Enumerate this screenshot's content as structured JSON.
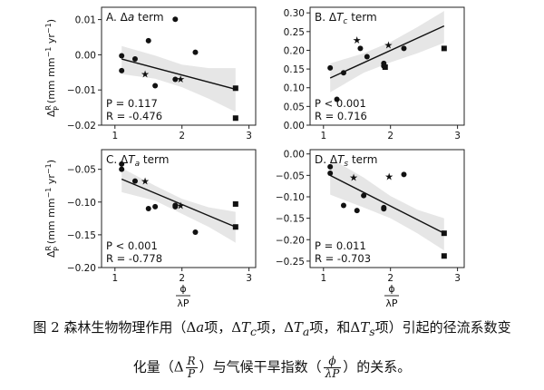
{
  "figure": {
    "shared_xlabel": {
      "num": "ϕ",
      "den": "λP"
    },
    "shared_ylabel": {
      "main": "Δ",
      "sup": "R",
      "sub": "P",
      "unit": "(mm mm",
      "exp": "−1",
      "unit2": " yr",
      "exp2": "−1",
      "close": ")"
    }
  },
  "chart_data": [
    {
      "id": "A",
      "type": "scatter",
      "title_prefix": "A. Δ",
      "title_var": "a",
      "title_sub": "",
      "title_suffix": " term",
      "xlim": [
        0.8,
        3.1
      ],
      "ylim": [
        -0.02,
        0.0135
      ],
      "xticks": [
        1,
        2,
        3
      ],
      "yticks": [
        -0.02,
        -0.01,
        0.0,
        0.01
      ],
      "ytick_labels": [
        "−0.02",
        "−0.01",
        "0.00",
        "0.01"
      ],
      "xtick_labels": [
        "1",
        "2",
        "3"
      ],
      "stats": [
        "P = 0.117",
        "R = -0.476"
      ],
      "circles": [
        [
          1.1,
          -0.0003
        ],
        [
          1.1,
          -0.0045
        ],
        [
          1.3,
          -0.0012
        ],
        [
          1.5,
          0.004
        ],
        [
          1.6,
          -0.0088
        ],
        [
          1.9,
          0.0101
        ],
        [
          1.9,
          -0.007
        ],
        [
          2.2,
          0.0007
        ]
      ],
      "stars": [
        [
          1.45,
          -0.0055
        ],
        [
          1.98,
          -0.0068
        ]
      ],
      "squares": [
        [
          2.8,
          -0.0095
        ],
        [
          2.8,
          -0.018
        ]
      ],
      "fit": {
        "x": [
          1.1,
          2.8
        ],
        "y": [
          -0.0012,
          -0.0098
        ]
      },
      "band_upper": [
        [
          1.1,
          0.0025
        ],
        [
          1.6,
          -0.0002
        ],
        [
          2.0,
          -0.0028
        ],
        [
          2.4,
          -0.0038
        ],
        [
          2.8,
          -0.0038
        ]
      ],
      "band_lower": [
        [
          1.1,
          -0.0055
        ],
        [
          1.6,
          -0.0068
        ],
        [
          2.0,
          -0.0092
        ],
        [
          2.4,
          -0.0125
        ],
        [
          2.8,
          -0.0162
        ]
      ]
    },
    {
      "id": "B",
      "type": "scatter",
      "title_prefix": "B. Δ",
      "title_var": "T",
      "title_sub": "c",
      "title_suffix": " term",
      "xlim": [
        0.8,
        3.1
      ],
      "ylim": [
        0.0,
        0.315
      ],
      "xticks": [
        1,
        2,
        3
      ],
      "yticks": [
        0.0,
        0.05,
        0.1,
        0.15,
        0.2,
        0.25,
        0.3
      ],
      "ytick_labels": [
        "0.00",
        "0.05",
        "0.10",
        "0.15",
        "0.20",
        "0.25",
        "0.30"
      ],
      "xtick_labels": [
        "1",
        "2",
        "3"
      ],
      "stats": [
        "P < 0.001",
        "R = 0.716"
      ],
      "circles": [
        [
          1.1,
          0.153
        ],
        [
          1.2,
          0.069
        ],
        [
          1.3,
          0.14
        ],
        [
          1.55,
          0.205
        ],
        [
          1.65,
          0.183
        ],
        [
          1.9,
          0.165
        ],
        [
          1.9,
          0.158
        ],
        [
          2.2,
          0.205
        ]
      ],
      "stars": [
        [
          1.5,
          0.228
        ],
        [
          1.97,
          0.215
        ]
      ],
      "squares": [
        [
          2.8,
          0.205
        ],
        [
          1.92,
          0.155
        ]
      ],
      "fit": {
        "x": [
          1.1,
          2.8
        ],
        "y": [
          0.126,
          0.265
        ]
      },
      "band_upper": [
        [
          1.1,
          0.165
        ],
        [
          1.6,
          0.192
        ],
        [
          2.0,
          0.222
        ],
        [
          2.4,
          0.262
        ],
        [
          2.8,
          0.305
        ]
      ],
      "band_lower": [
        [
          1.1,
          0.088
        ],
        [
          1.6,
          0.14
        ],
        [
          2.0,
          0.168
        ],
        [
          2.4,
          0.192
        ],
        [
          2.8,
          0.22
        ]
      ]
    },
    {
      "id": "C",
      "type": "scatter",
      "title_prefix": "C. Δ",
      "title_var": "T",
      "title_sub": "a",
      "title_suffix": " term",
      "xlim": [
        0.8,
        3.1
      ],
      "ylim": [
        -0.2,
        -0.02
      ],
      "xticks": [
        1,
        2,
        3
      ],
      "yticks": [
        -0.2,
        -0.15,
        -0.1,
        -0.05
      ],
      "ytick_labels": [
        "−0.20",
        "−0.15",
        "−0.10",
        "−0.05"
      ],
      "xtick_labels": [
        "1",
        "2",
        "3"
      ],
      "stats": [
        "P < 0.001",
        "R = -0.778"
      ],
      "circles": [
        [
          1.1,
          -0.042
        ],
        [
          1.1,
          -0.05
        ],
        [
          1.3,
          -0.068
        ],
        [
          1.5,
          -0.11
        ],
        [
          1.6,
          -0.107
        ],
        [
          1.9,
          -0.105
        ],
        [
          1.9,
          -0.107
        ],
        [
          2.2,
          -0.146
        ]
      ],
      "stars": [
        [
          1.45,
          -0.068
        ],
        [
          1.98,
          -0.105
        ]
      ],
      "squares": [
        [
          2.8,
          -0.103
        ],
        [
          2.8,
          -0.138
        ]
      ],
      "fit": {
        "x": [
          1.1,
          2.8
        ],
        "y": [
          -0.065,
          -0.138
        ]
      },
      "band_upper": [
        [
          1.1,
          -0.048
        ],
        [
          1.6,
          -0.075
        ],
        [
          2.0,
          -0.095
        ],
        [
          2.4,
          -0.108
        ],
        [
          2.8,
          -0.115
        ]
      ],
      "band_lower": [
        [
          1.1,
          -0.085
        ],
        [
          1.6,
          -0.098
        ],
        [
          2.0,
          -0.118
        ],
        [
          2.4,
          -0.138
        ],
        [
          2.8,
          -0.162
        ]
      ]
    },
    {
      "id": "D",
      "type": "scatter",
      "title_prefix": "D. Δ",
      "title_var": "T",
      "title_sub": "s",
      "title_suffix": " term",
      "xlim": [
        0.8,
        3.1
      ],
      "ylim": [
        -0.265,
        0.01
      ],
      "xticks": [
        1,
        2,
        3
      ],
      "yticks": [
        -0.25,
        -0.2,
        -0.15,
        -0.1,
        -0.05,
        0.0
      ],
      "ytick_labels": [
        "−0.25",
        "−0.20",
        "−0.15",
        "−0.10",
        "−0.05",
        "0.00"
      ],
      "xtick_labels": [
        "1",
        "2",
        "3"
      ],
      "stats": [
        "P = 0.011",
        "R = -0.703"
      ],
      "circles": [
        [
          1.1,
          -0.03
        ],
        [
          1.1,
          -0.045
        ],
        [
          1.3,
          -0.12
        ],
        [
          1.5,
          -0.132
        ],
        [
          1.6,
          -0.097
        ],
        [
          1.9,
          -0.125
        ],
        [
          1.9,
          -0.128
        ],
        [
          2.2,
          -0.048
        ]
      ],
      "stars": [
        [
          1.45,
          -0.055
        ],
        [
          1.98,
          -0.052
        ]
      ],
      "squares": [
        [
          2.8,
          -0.185
        ],
        [
          2.8,
          -0.238
        ]
      ],
      "fit": {
        "x": [
          1.1,
          2.8
        ],
        "y": [
          -0.05,
          -0.185
        ]
      },
      "band_upper": [
        [
          1.1,
          -0.01
        ],
        [
          1.6,
          -0.055
        ],
        [
          2.0,
          -0.098
        ],
        [
          2.4,
          -0.13
        ],
        [
          2.8,
          -0.15
        ]
      ],
      "band_lower": [
        [
          1.1,
          -0.095
        ],
        [
          1.6,
          -0.125
        ],
        [
          2.0,
          -0.15
        ],
        [
          2.4,
          -0.185
        ],
        [
          2.8,
          -0.225
        ]
      ]
    }
  ],
  "caption": {
    "line1_pre": "图 2  森林生物物理作用（Δ",
    "line1_a": "a",
    "line1_mid1": "项，Δ",
    "line1_tc": "T",
    "line1_tc_sub": "c",
    "line1_mid2": "项，Δ",
    "line1_ta": "T",
    "line1_ta_sub": "a",
    "line1_mid3": "项，和Δ",
    "line1_ts": "T",
    "line1_ts_sub": "s",
    "line1_post": "项）引起的径流系数变",
    "line2_pre": "化量（Δ",
    "line2_frac_num": "R",
    "line2_frac_den": "P",
    "line2_mid": "）与气候干旱指数（",
    "line2_frac2_num": "ϕ",
    "line2_frac2_den": "λP",
    "line2_post": "）的关系。"
  }
}
